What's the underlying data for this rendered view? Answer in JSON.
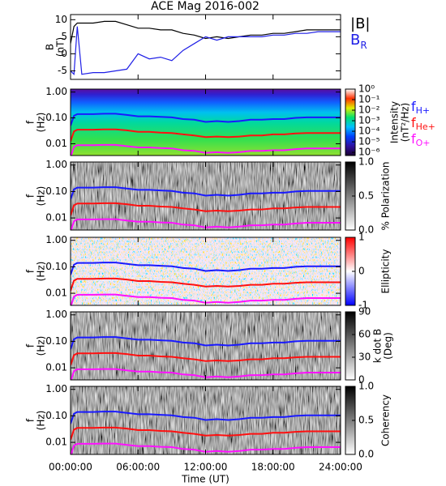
{
  "chart_data": [
    {
      "type": "line",
      "title": "ACE Mag 2016-002",
      "ylabel": [
        "B",
        "(nT)"
      ],
      "x": [
        0,
        0.3,
        0.6,
        1,
        2,
        3,
        4,
        5,
        6,
        7,
        8,
        9,
        10,
        11,
        12,
        13,
        14,
        15,
        16,
        17,
        18,
        19,
        20,
        21,
        22,
        23,
        24
      ],
      "xlim": [
        0,
        24
      ],
      "ylim": [
        -7.5,
        11.5
      ],
      "yticks": [
        -5,
        0,
        5,
        10
      ],
      "series": [
        {
          "name": "|B|",
          "color": "#000000",
          "values": [
            3,
            8,
            9,
            9,
            9,
            9.5,
            9.5,
            8.5,
            7.5,
            7.5,
            7,
            7,
            6,
            5.5,
            4.5,
            5,
            4.5,
            5,
            5.5,
            5.5,
            6,
            6,
            6.5,
            7,
            7,
            7,
            7
          ]
        },
        {
          "name": "B",
          "subscript": "R",
          "color": "#1f1fe6",
          "values": [
            -5,
            -6,
            8,
            -6,
            -5.5,
            -5.5,
            -5,
            -4.5,
            0,
            -1.5,
            -1,
            -2,
            1,
            3,
            5,
            4,
            5,
            5,
            5,
            5,
            5.5,
            5.5,
            6,
            6,
            6.5,
            6.5,
            6.5
          ]
        }
      ]
    },
    {
      "type": "spectrogram",
      "ylabel": [
        "f",
        "(Hz)"
      ],
      "log_y": true,
      "ylim": [
        0.0035,
        1.3
      ],
      "yticks": [
        {
          "value": 1,
          "label": "1.00"
        },
        {
          "value": 0.1,
          "label": "0.10"
        },
        {
          "value": 0.01,
          "label": "0.01"
        }
      ],
      "colorbar_label": [
        "Intensity",
        "(nT²/Hz)"
      ],
      "clog": true,
      "clim": [
        5e-07,
        1
      ],
      "cticks": [
        {
          "value": 1,
          "label": "10⁰"
        },
        {
          "value": 0.1,
          "label": "10⁻¹"
        },
        {
          "value": 0.01,
          "label": "10⁻²"
        },
        {
          "value": 0.001,
          "label": "10⁻³"
        },
        {
          "value": 0.0001,
          "label": "10⁻⁴"
        },
        {
          "value": 1e-05,
          "label": "10⁻⁵"
        },
        {
          "value": 1e-06,
          "label": "10⁻⁶"
        }
      ],
      "colormap": [
        "#1a0030",
        "#3010a0",
        "#0040ff",
        "#00c0ff",
        "#00e070",
        "#e0f000",
        "#ff3000",
        "#ffffff"
      ],
      "series": [
        {
          "name": "f",
          "subscript": "H+",
          "color": "#1a1aff",
          "values": [
            0.05,
            0.12,
            0.14,
            0.14,
            0.14,
            0.145,
            0.145,
            0.13,
            0.115,
            0.115,
            0.11,
            0.105,
            0.09,
            0.085,
            0.07,
            0.075,
            0.07,
            0.075,
            0.085,
            0.085,
            0.09,
            0.09,
            0.1,
            0.105,
            0.105,
            0.105,
            0.105
          ]
        },
        {
          "name": "f",
          "subscript": "He+",
          "color": "#ff1010",
          "values": [
            0.0125,
            0.03,
            0.035,
            0.035,
            0.035,
            0.036,
            0.036,
            0.033,
            0.029,
            0.029,
            0.027,
            0.026,
            0.023,
            0.021,
            0.018,
            0.019,
            0.018,
            0.019,
            0.021,
            0.021,
            0.023,
            0.023,
            0.025,
            0.026,
            0.026,
            0.026,
            0.026
          ]
        },
        {
          "name": "f",
          "subscript": "O+",
          "color": "#ff10ff",
          "values": [
            0.003,
            0.0075,
            0.0088,
            0.0088,
            0.0088,
            0.009,
            0.009,
            0.008,
            0.0072,
            0.0072,
            0.0068,
            0.0066,
            0.0056,
            0.0053,
            0.0044,
            0.0047,
            0.0044,
            0.0047,
            0.0053,
            0.0053,
            0.0056,
            0.0056,
            0.0062,
            0.0066,
            0.0066,
            0.0066,
            0.0066
          ]
        }
      ]
    },
    {
      "type": "spectrogram",
      "ylabel": [
        "f",
        "(Hz)"
      ],
      "log_y": true,
      "ylim": [
        0.0035,
        1.3
      ],
      "yticks": [
        {
          "value": 1,
          "label": "1.00"
        },
        {
          "value": 0.1,
          "label": "0.10"
        },
        {
          "value": 0.01,
          "label": "0.01"
        }
      ],
      "colorbar_label": [
        "% Polarization"
      ],
      "clim": [
        0,
        1
      ],
      "cticks": [
        {
          "value": 0,
          "label": "0.0"
        },
        {
          "value": 0.5,
          "label": "0.5"
        },
        {
          "value": 1,
          "label": "1.0"
        }
      ],
      "colormap": [
        "#ffffff",
        "#000000"
      ]
    },
    {
      "type": "spectrogram",
      "ylabel": [
        "f",
        "(Hz)"
      ],
      "log_y": true,
      "ylim": [
        0.0035,
        1.3
      ],
      "yticks": [
        {
          "value": 1,
          "label": "1.00"
        },
        {
          "value": 0.1,
          "label": "0.10"
        },
        {
          "value": 0.01,
          "label": "0.01"
        }
      ],
      "colorbar_label": [
        "Ellipticity"
      ],
      "clim": [
        -1,
        1
      ],
      "cticks": [
        -1,
        0,
        1
      ],
      "colormap": [
        "#0000ff",
        "#ffffff",
        "#ff0000"
      ]
    },
    {
      "type": "spectrogram",
      "ylabel": [
        "f",
        "(Hz)"
      ],
      "log_y": true,
      "ylim": [
        0.0035,
        1.3
      ],
      "yticks": [
        {
          "value": 1,
          "label": "1.00"
        },
        {
          "value": 0.1,
          "label": "0.10"
        },
        {
          "value": 0.01,
          "label": "0.01"
        }
      ],
      "colorbar_label": [
        "k dot B",
        "(Deg)"
      ],
      "clim": [
        0,
        90
      ],
      "cticks": [
        0,
        30,
        60,
        90
      ],
      "colormap": [
        "#ffffff",
        "#000000"
      ]
    },
    {
      "type": "spectrogram",
      "ylabel": [
        "f",
        "(Hz)"
      ],
      "log_y": true,
      "ylim": [
        0.0035,
        1.3
      ],
      "yticks": [
        {
          "value": 1,
          "label": "1.00"
        },
        {
          "value": 0.1,
          "label": "0.10"
        },
        {
          "value": 0.01,
          "label": "0.01"
        }
      ],
      "colorbar_label": [
        "Coherency"
      ],
      "clim": [
        0,
        1
      ],
      "cticks": [
        {
          "value": 0,
          "label": "0.0"
        },
        {
          "value": 0.5,
          "label": "0.5"
        },
        {
          "value": 1,
          "label": "1.0"
        }
      ],
      "colormap": [
        "#ffffff",
        "#000000"
      ],
      "xlabel": "Time (UT)",
      "xticks": [
        {
          "value": 0,
          "label": "00:00:00"
        },
        {
          "value": 6,
          "label": "06:00:00"
        },
        {
          "value": 12,
          "label": "12:00:00"
        },
        {
          "value": 18,
          "label": "18:00:00"
        },
        {
          "value": 24,
          "label": "24:00:00"
        }
      ]
    }
  ]
}
